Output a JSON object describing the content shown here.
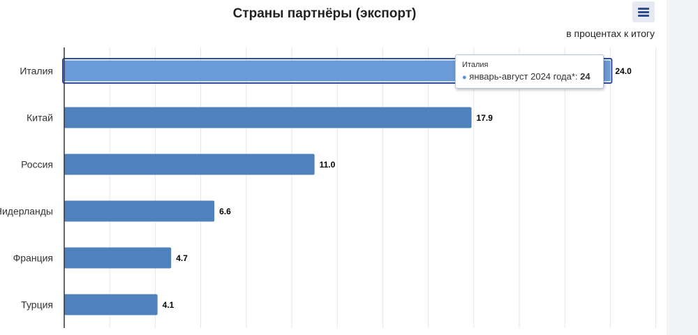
{
  "title": "Страны партнёры (экспорт)",
  "subtitle": "в процентах к итогу",
  "menu": {
    "icon": "hamburger-menu-icon"
  },
  "tooltip": {
    "title": "Италия",
    "series_label": "январь-август 2024 года*:",
    "value": "24"
  },
  "colors": {
    "bar": "#4f81bd",
    "bar_highlight": "#6b9bd6",
    "highlight_border": "#2e4d9f",
    "grid": "#e6e6e6",
    "axis": "#333333"
  },
  "chart_data": {
    "type": "bar",
    "orientation": "horizontal",
    "categories": [
      "Италия",
      "Китай",
      "Россия",
      "Нидерланды",
      "Франция",
      "Турция"
    ],
    "series": [
      {
        "name": "январь-август 2024 года*",
        "values": [
          24.0,
          17.9,
          11.0,
          6.6,
          4.7,
          4.1
        ],
        "labels": [
          "24.0",
          "17.9",
          "11.0",
          "6.6",
          "4.7",
          "4.1"
        ]
      }
    ],
    "highlighted_category": "Италия",
    "title": "Страны партнёры (экспорт)",
    "subtitle": "в процентах к итогу",
    "xlim": [
      0,
      26
    ],
    "grid": true,
    "gridline_step": 2
  }
}
